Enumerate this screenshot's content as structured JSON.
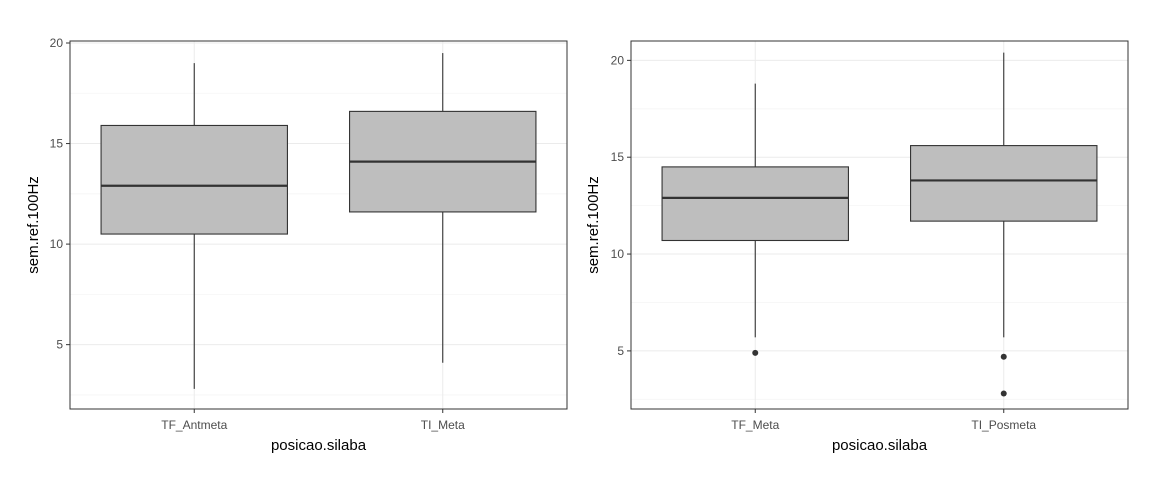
{
  "chart_data": [
    {
      "type": "boxplot",
      "title": "",
      "xlabel": "posicao.silaba",
      "ylabel": "sem.ref.100Hz",
      "ylim": [
        1.8,
        20.1
      ],
      "yticks": [
        5,
        10,
        15,
        20
      ],
      "grid": true,
      "categories": [
        "TF_Antmeta",
        "TI_Meta"
      ],
      "boxes": [
        {
          "category": "TF_Antmeta",
          "whisker_low": 2.8,
          "q1": 10.5,
          "median": 12.9,
          "q3": 15.9,
          "whisker_high": 19.0,
          "outliers": []
        },
        {
          "category": "TI_Meta",
          "whisker_low": 4.1,
          "q1": 11.6,
          "median": 14.1,
          "q3": 16.6,
          "whisker_high": 19.5,
          "outliers": []
        }
      ]
    },
    {
      "type": "boxplot",
      "title": "",
      "xlabel": "posicao.silaba",
      "ylabel": "sem.ref.100Hz",
      "ylim": [
        2.0,
        21.0
      ],
      "yticks": [
        5,
        10,
        15,
        20
      ],
      "grid": true,
      "categories": [
        "TF_Meta",
        "TI_Posmeta"
      ],
      "boxes": [
        {
          "category": "TF_Meta",
          "whisker_low": 5.7,
          "q1": 10.7,
          "median": 12.9,
          "q3": 14.5,
          "whisker_high": 18.8,
          "outliers": [
            4.9
          ]
        },
        {
          "category": "TI_Posmeta",
          "whisker_low": 5.7,
          "q1": 11.7,
          "median": 13.8,
          "q3": 15.6,
          "whisker_high": 20.4,
          "outliers": [
            4.7,
            2.8
          ]
        }
      ]
    }
  ],
  "colors": {
    "box_fill": "#bebebe",
    "box_stroke": "#333333",
    "grid_major": "#ebebeb",
    "grid_minor": "#f5f5f5",
    "panel_border": "#333333",
    "outlier": "#333333"
  }
}
